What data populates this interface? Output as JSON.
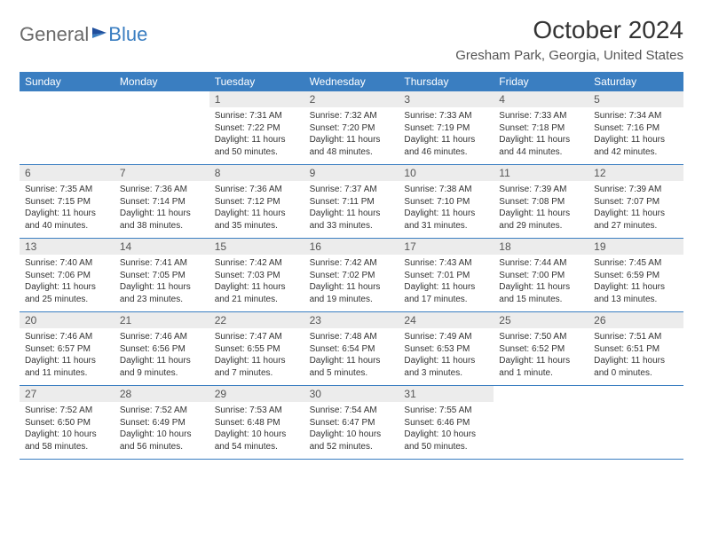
{
  "logo": {
    "general": "General",
    "blue": "Blue"
  },
  "title": "October 2024",
  "location": "Gresham Park, Georgia, United States",
  "colors": {
    "header_bg": "#3a7ec1",
    "header_text": "#ffffff",
    "daynum_bg": "#ececec",
    "text": "#333333",
    "logo_gray": "#6a6a6a",
    "logo_blue": "#3a7ec1",
    "page_bg": "#ffffff"
  },
  "day_headers": [
    "Sunday",
    "Monday",
    "Tuesday",
    "Wednesday",
    "Thursday",
    "Friday",
    "Saturday"
  ],
  "weeks": [
    [
      {
        "n": "",
        "sr": "",
        "ss": "",
        "dl": ""
      },
      {
        "n": "",
        "sr": "",
        "ss": "",
        "dl": ""
      },
      {
        "n": "1",
        "sr": "Sunrise: 7:31 AM",
        "ss": "Sunset: 7:22 PM",
        "dl": "Daylight: 11 hours and 50 minutes."
      },
      {
        "n": "2",
        "sr": "Sunrise: 7:32 AM",
        "ss": "Sunset: 7:20 PM",
        "dl": "Daylight: 11 hours and 48 minutes."
      },
      {
        "n": "3",
        "sr": "Sunrise: 7:33 AM",
        "ss": "Sunset: 7:19 PM",
        "dl": "Daylight: 11 hours and 46 minutes."
      },
      {
        "n": "4",
        "sr": "Sunrise: 7:33 AM",
        "ss": "Sunset: 7:18 PM",
        "dl": "Daylight: 11 hours and 44 minutes."
      },
      {
        "n": "5",
        "sr": "Sunrise: 7:34 AM",
        "ss": "Sunset: 7:16 PM",
        "dl": "Daylight: 11 hours and 42 minutes."
      }
    ],
    [
      {
        "n": "6",
        "sr": "Sunrise: 7:35 AM",
        "ss": "Sunset: 7:15 PM",
        "dl": "Daylight: 11 hours and 40 minutes."
      },
      {
        "n": "7",
        "sr": "Sunrise: 7:36 AM",
        "ss": "Sunset: 7:14 PM",
        "dl": "Daylight: 11 hours and 38 minutes."
      },
      {
        "n": "8",
        "sr": "Sunrise: 7:36 AM",
        "ss": "Sunset: 7:12 PM",
        "dl": "Daylight: 11 hours and 35 minutes."
      },
      {
        "n": "9",
        "sr": "Sunrise: 7:37 AM",
        "ss": "Sunset: 7:11 PM",
        "dl": "Daylight: 11 hours and 33 minutes."
      },
      {
        "n": "10",
        "sr": "Sunrise: 7:38 AM",
        "ss": "Sunset: 7:10 PM",
        "dl": "Daylight: 11 hours and 31 minutes."
      },
      {
        "n": "11",
        "sr": "Sunrise: 7:39 AM",
        "ss": "Sunset: 7:08 PM",
        "dl": "Daylight: 11 hours and 29 minutes."
      },
      {
        "n": "12",
        "sr": "Sunrise: 7:39 AM",
        "ss": "Sunset: 7:07 PM",
        "dl": "Daylight: 11 hours and 27 minutes."
      }
    ],
    [
      {
        "n": "13",
        "sr": "Sunrise: 7:40 AM",
        "ss": "Sunset: 7:06 PM",
        "dl": "Daylight: 11 hours and 25 minutes."
      },
      {
        "n": "14",
        "sr": "Sunrise: 7:41 AM",
        "ss": "Sunset: 7:05 PM",
        "dl": "Daylight: 11 hours and 23 minutes."
      },
      {
        "n": "15",
        "sr": "Sunrise: 7:42 AM",
        "ss": "Sunset: 7:03 PM",
        "dl": "Daylight: 11 hours and 21 minutes."
      },
      {
        "n": "16",
        "sr": "Sunrise: 7:42 AM",
        "ss": "Sunset: 7:02 PM",
        "dl": "Daylight: 11 hours and 19 minutes."
      },
      {
        "n": "17",
        "sr": "Sunrise: 7:43 AM",
        "ss": "Sunset: 7:01 PM",
        "dl": "Daylight: 11 hours and 17 minutes."
      },
      {
        "n": "18",
        "sr": "Sunrise: 7:44 AM",
        "ss": "Sunset: 7:00 PM",
        "dl": "Daylight: 11 hours and 15 minutes."
      },
      {
        "n": "19",
        "sr": "Sunrise: 7:45 AM",
        "ss": "Sunset: 6:59 PM",
        "dl": "Daylight: 11 hours and 13 minutes."
      }
    ],
    [
      {
        "n": "20",
        "sr": "Sunrise: 7:46 AM",
        "ss": "Sunset: 6:57 PM",
        "dl": "Daylight: 11 hours and 11 minutes."
      },
      {
        "n": "21",
        "sr": "Sunrise: 7:46 AM",
        "ss": "Sunset: 6:56 PM",
        "dl": "Daylight: 11 hours and 9 minutes."
      },
      {
        "n": "22",
        "sr": "Sunrise: 7:47 AM",
        "ss": "Sunset: 6:55 PM",
        "dl": "Daylight: 11 hours and 7 minutes."
      },
      {
        "n": "23",
        "sr": "Sunrise: 7:48 AM",
        "ss": "Sunset: 6:54 PM",
        "dl": "Daylight: 11 hours and 5 minutes."
      },
      {
        "n": "24",
        "sr": "Sunrise: 7:49 AM",
        "ss": "Sunset: 6:53 PM",
        "dl": "Daylight: 11 hours and 3 minutes."
      },
      {
        "n": "25",
        "sr": "Sunrise: 7:50 AM",
        "ss": "Sunset: 6:52 PM",
        "dl": "Daylight: 11 hours and 1 minute."
      },
      {
        "n": "26",
        "sr": "Sunrise: 7:51 AM",
        "ss": "Sunset: 6:51 PM",
        "dl": "Daylight: 11 hours and 0 minutes."
      }
    ],
    [
      {
        "n": "27",
        "sr": "Sunrise: 7:52 AM",
        "ss": "Sunset: 6:50 PM",
        "dl": "Daylight: 10 hours and 58 minutes."
      },
      {
        "n": "28",
        "sr": "Sunrise: 7:52 AM",
        "ss": "Sunset: 6:49 PM",
        "dl": "Daylight: 10 hours and 56 minutes."
      },
      {
        "n": "29",
        "sr": "Sunrise: 7:53 AM",
        "ss": "Sunset: 6:48 PM",
        "dl": "Daylight: 10 hours and 54 minutes."
      },
      {
        "n": "30",
        "sr": "Sunrise: 7:54 AM",
        "ss": "Sunset: 6:47 PM",
        "dl": "Daylight: 10 hours and 52 minutes."
      },
      {
        "n": "31",
        "sr": "Sunrise: 7:55 AM",
        "ss": "Sunset: 6:46 PM",
        "dl": "Daylight: 10 hours and 50 minutes."
      },
      {
        "n": "",
        "sr": "",
        "ss": "",
        "dl": ""
      },
      {
        "n": "",
        "sr": "",
        "ss": "",
        "dl": ""
      }
    ]
  ]
}
